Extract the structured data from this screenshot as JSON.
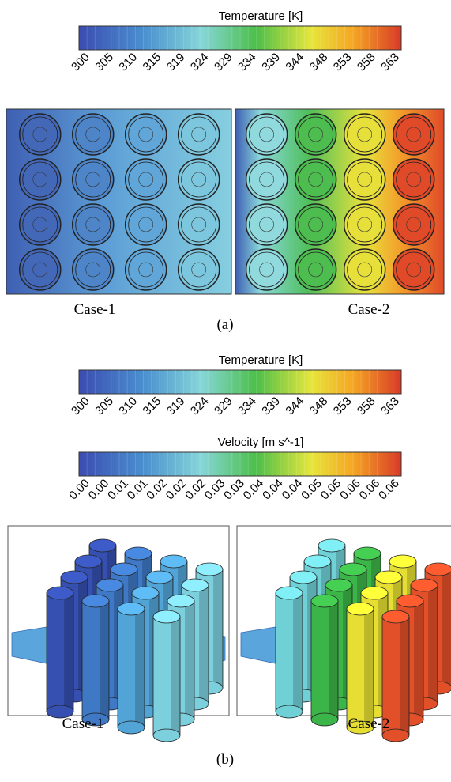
{
  "colorbars": [
    {
      "title": "Temperature [K]",
      "ticks": [
        "300",
        "305",
        "310",
        "315",
        "319",
        "324",
        "329",
        "334",
        "339",
        "344",
        "348",
        "353",
        "358",
        "363"
      ]
    },
    {
      "title": "Temperature [K]",
      "ticks": [
        "300",
        "305",
        "310",
        "315",
        "319",
        "324",
        "329",
        "334",
        "339",
        "344",
        "348",
        "353",
        "358",
        "363"
      ]
    },
    {
      "title": "Velocity [m s^-1]",
      "ticks": [
        "0.00",
        "0.00",
        "0.01",
        "0.01",
        "0.02",
        "0.02",
        "0.02",
        "0.03",
        "0.03",
        "0.04",
        "0.04",
        "0.04",
        "0.05",
        "0.05",
        "0.06",
        "0.06",
        "0.06"
      ]
    }
  ],
  "panel_a": {
    "case1": "Case-1",
    "case2": "Case-2",
    "caption": "(a)"
  },
  "panel_b": {
    "case1": "Case-1",
    "case2": "Case-2",
    "caption": "(b)"
  }
}
